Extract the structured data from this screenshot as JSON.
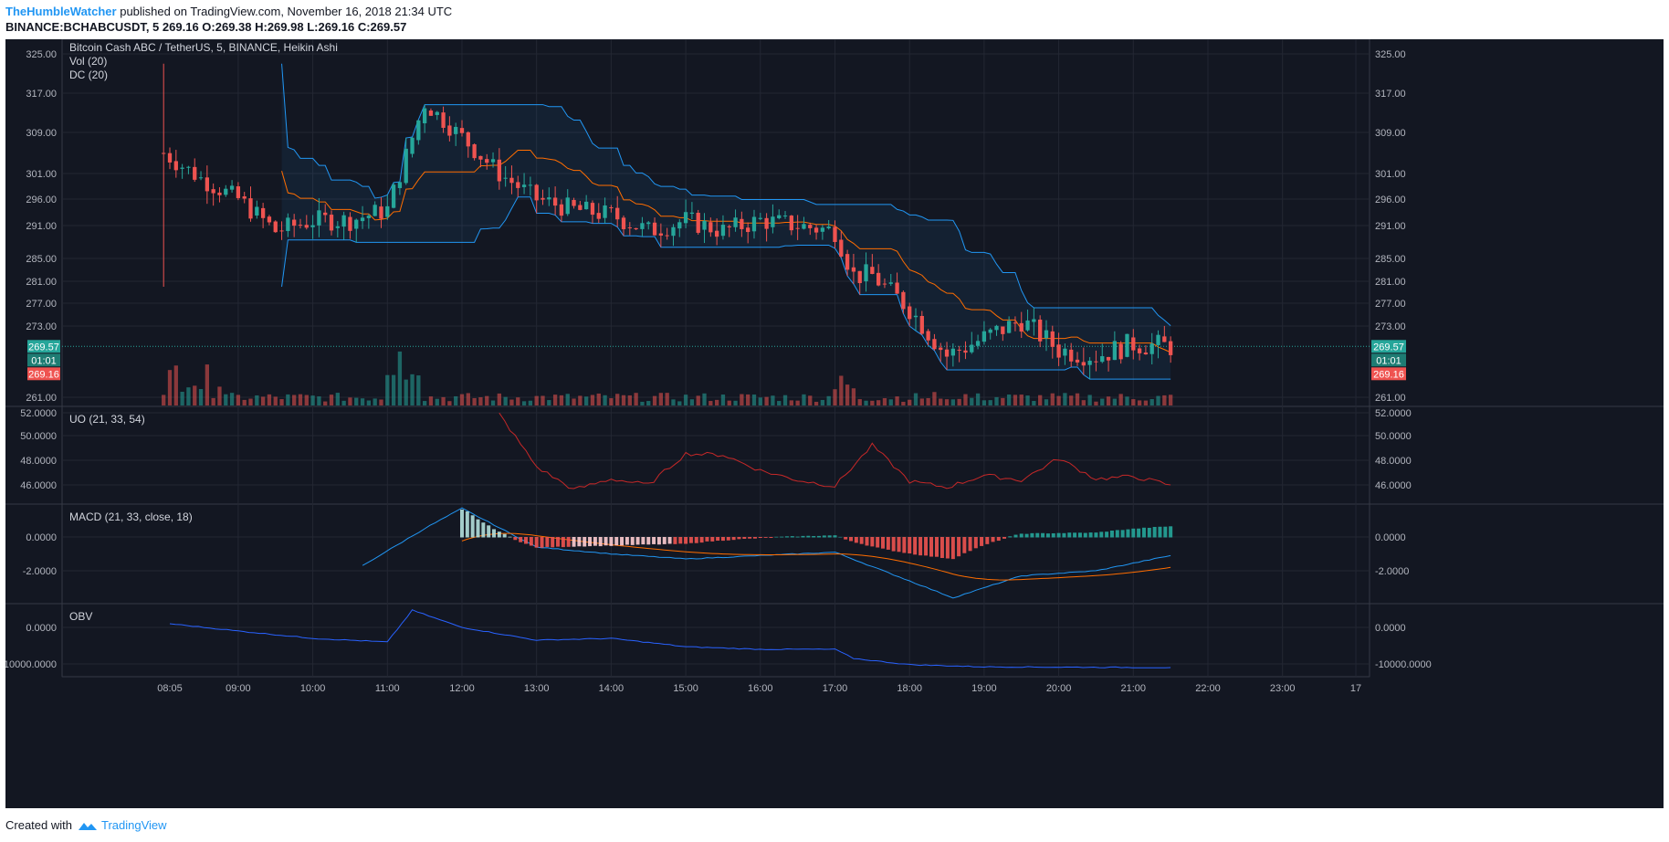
{
  "header": {
    "author": "TheHumbleWatcher",
    "published": "published on TradingView.com, November 16, 2018 21:34 UTC",
    "symbol_line": "BINANCE:BCHABCUSDT, 5",
    "ohlc": "269.16 O:269.38 H:269.98 L:269.16 C:269.57"
  },
  "footer": {
    "created_with": "Created with",
    "brand": "TradingView"
  },
  "colors": {
    "background": "#131722",
    "up": "#26a69a",
    "down": "#ef5350",
    "dc_band": "#2196f3",
    "dc_mid": "#ff6d00",
    "uo": "#c62828",
    "macd": "#2196f3",
    "signal": "#ff6d00",
    "obv": "#2962ff"
  },
  "chart_data": {
    "type": "candlestick",
    "title": "Bitcoin Cash ABC / TetherUS, 5, BINANCE, Heikin Ashi",
    "legend": [
      "Vol (20)",
      "DC (20)"
    ],
    "time_ticks": [
      "08:05",
      "09:00",
      "10:00",
      "11:00",
      "12:00",
      "13:00",
      "14:00",
      "15:00",
      "16:00",
      "17:00",
      "18:00",
      "19:00",
      "20:00",
      "21:00",
      "22:00",
      "23:00",
      "17"
    ],
    "price_ticks": [
      "325.00",
      "317.00",
      "309.00",
      "301.00",
      "296.00",
      "291.00",
      "285.00",
      "281.00",
      "277.00",
      "273.00",
      "261.00"
    ],
    "price_labels": {
      "last": "269.57",
      "countdown": "01:01",
      "low": "269.16"
    },
    "close_series": [
      {
        "t": "08:00",
        "close": 305
      },
      {
        "t": "08:30",
        "close": 300
      },
      {
        "t": "09:00",
        "close": 296
      },
      {
        "t": "09:30",
        "close": 290
      },
      {
        "t": "10:00",
        "close": 292
      },
      {
        "t": "10:30",
        "close": 292
      },
      {
        "t": "11:00",
        "close": 294
      },
      {
        "t": "11:30",
        "close": 315
      },
      {
        "t": "12:00",
        "close": 308
      },
      {
        "t": "12:30",
        "close": 301
      },
      {
        "t": "13:00",
        "close": 296
      },
      {
        "t": "13:30",
        "close": 294
      },
      {
        "t": "14:00",
        "close": 293
      },
      {
        "t": "14:30",
        "close": 290
      },
      {
        "t": "15:00",
        "close": 292
      },
      {
        "t": "15:30",
        "close": 290
      },
      {
        "t": "16:00",
        "close": 292
      },
      {
        "t": "16:30",
        "close": 291
      },
      {
        "t": "17:00",
        "close": 290
      },
      {
        "t": "17:15",
        "close": 282
      },
      {
        "t": "17:30",
        "close": 282
      },
      {
        "t": "18:00",
        "close": 276
      },
      {
        "t": "18:30",
        "close": 268
      },
      {
        "t": "19:00",
        "close": 271
      },
      {
        "t": "19:30",
        "close": 274
      },
      {
        "t": "20:00",
        "close": 269
      },
      {
        "t": "20:30",
        "close": 268
      },
      {
        "t": "21:00",
        "close": 270
      },
      {
        "t": "21:30",
        "close": 269.57
      }
    ],
    "panes": [
      {
        "name": "UO (21, 33, 54)",
        "ticks": [
          "52.0000",
          "50.0000",
          "48.0000",
          "46.0000"
        ],
        "series": [
          {
            "t": "12:30",
            "v": 51.9
          },
          {
            "t": "13:00",
            "v": 47.5
          },
          {
            "t": "13:30",
            "v": 45.6
          },
          {
            "t": "14:00",
            "v": 46.5
          },
          {
            "t": "14:30",
            "v": 46.0
          },
          {
            "t": "15:00",
            "v": 48.6
          },
          {
            "t": "15:30",
            "v": 48.5
          },
          {
            "t": "16:00",
            "v": 47.2
          },
          {
            "t": "16:30",
            "v": 46.4
          },
          {
            "t": "17:00",
            "v": 45.9
          },
          {
            "t": "17:30",
            "v": 49.3
          },
          {
            "t": "18:00",
            "v": 46.3
          },
          {
            "t": "18:30",
            "v": 45.8
          },
          {
            "t": "19:00",
            "v": 46.8
          },
          {
            "t": "19:30",
            "v": 46.4
          },
          {
            "t": "20:00",
            "v": 48.2
          },
          {
            "t": "20:30",
            "v": 46.5
          },
          {
            "t": "21:00",
            "v": 46.7
          },
          {
            "t": "21:30",
            "v": 46.0
          }
        ]
      },
      {
        "name": "MACD (21, 33, close, 18)",
        "ticks": [
          "0.0000",
          "-2.0000"
        ],
        "series": [
          {
            "t": "10:40",
            "v": -1.7
          },
          {
            "t": "11:30",
            "v": 0.5
          },
          {
            "t": "12:00",
            "v": 1.7
          },
          {
            "t": "13:00",
            "v": -0.6
          },
          {
            "t": "14:00",
            "v": -1.0
          },
          {
            "t": "15:00",
            "v": -1.3
          },
          {
            "t": "16:00",
            "v": -1.1
          },
          {
            "t": "17:00",
            "v": -0.9
          },
          {
            "t": "18:00",
            "v": -2.6
          },
          {
            "t": "18:35",
            "v": -3.6
          },
          {
            "t": "19:30",
            "v": -2.3
          },
          {
            "t": "20:30",
            "v": -2.0
          },
          {
            "t": "21:30",
            "v": -1.1
          }
        ]
      },
      {
        "name": "OBV",
        "ticks": [
          "0.0000",
          "-10000.0000"
        ],
        "series": [
          {
            "t": "08:05",
            "v": 1000
          },
          {
            "t": "09:00",
            "v": -1000
          },
          {
            "t": "10:00",
            "v": -3000
          },
          {
            "t": "11:00",
            "v": -4000
          },
          {
            "t": "11:20",
            "v": 4700
          },
          {
            "t": "12:00",
            "v": 0
          },
          {
            "t": "13:00",
            "v": -3500
          },
          {
            "t": "14:00",
            "v": -3000
          },
          {
            "t": "15:00",
            "v": -5300
          },
          {
            "t": "16:00",
            "v": -6000
          },
          {
            "t": "17:00",
            "v": -6000
          },
          {
            "t": "17:15",
            "v": -8500
          },
          {
            "t": "18:00",
            "v": -10200
          },
          {
            "t": "19:00",
            "v": -10800
          },
          {
            "t": "21:30",
            "v": -11000
          }
        ]
      }
    ]
  }
}
